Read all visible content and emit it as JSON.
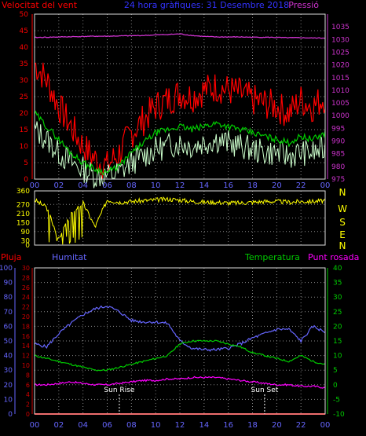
{
  "chart_data": [
    {
      "type": "line",
      "title": "24 hora gràfiques: 31 Desembre 2018",
      "left_label": "Velocitat del vent",
      "right_label": "Pressió",
      "x_tick_labels": [
        "00",
        "02",
        "04",
        "06",
        "08",
        "10",
        "12",
        "14",
        "16",
        "18",
        "20",
        "22",
        "00"
      ],
      "ylim_left": [
        0,
        50
      ],
      "yticks_left": [
        0,
        5,
        10,
        15,
        20,
        25,
        30,
        35,
        40,
        45,
        50
      ],
      "ylim_right": [
        975,
        1040
      ],
      "yticks_right": [
        975,
        980,
        985,
        990,
        995,
        1000,
        1005,
        1010,
        1015,
        1020,
        1025,
        1030,
        1035
      ],
      "grid": true,
      "colors": {
        "gust": "#ff0000",
        "average": "#00cc00",
        "speed": "#ccffcc",
        "pressure": "#cc33cc"
      },
      "series": [
        {
          "key": "gust",
          "values": [
            35,
            30,
            22,
            16,
            10,
            6,
            4,
            8,
            14,
            18,
            22,
            24,
            26,
            25,
            27,
            28,
            27,
            26,
            24,
            23,
            22,
            20,
            24,
            22,
            25
          ]
        },
        {
          "key": "average",
          "values": [
            20,
            16,
            12,
            8,
            5,
            3,
            2,
            4,
            8,
            11,
            14,
            15,
            16,
            15,
            16,
            17,
            16,
            15,
            14,
            13,
            12,
            11,
            13,
            12,
            14
          ]
        },
        {
          "key": "speed",
          "values": [
            15,
            12,
            8,
            5,
            3,
            1,
            1,
            2,
            5,
            7,
            9,
            10,
            11,
            10,
            11,
            12,
            11,
            10,
            9,
            8,
            8,
            7,
            8,
            8,
            9
          ]
        },
        {
          "key": "pressure",
          "values": [
            1030.8,
            1030.9,
            1031.0,
            1031.1,
            1031.2,
            1031.3,
            1031.3,
            1031.4,
            1031.5,
            1031.6,
            1031.8,
            1032.0,
            1032.2,
            1031.6,
            1031.2,
            1031.0,
            1031.0,
            1031.0,
            1030.9,
            1030.9,
            1030.8,
            1030.7,
            1030.7,
            1030.6,
            1030.6
          ]
        }
      ]
    },
    {
      "type": "line",
      "ylim": [
        0,
        360
      ],
      "yticks": [
        0,
        30,
        90,
        150,
        210,
        270,
        360
      ],
      "compass_labels": [
        "N",
        "W",
        "S",
        "E",
        "N"
      ],
      "grid": true,
      "colors": {
        "direction": "#ffff00"
      },
      "series": [
        {
          "key": "direction",
          "values": [
            300,
            250,
            40,
            200,
            280,
            120,
            300,
            285,
            290,
            295,
            300,
            305,
            300,
            290,
            285,
            285,
            280,
            280,
            285,
            290,
            290,
            285,
            290,
            290,
            295
          ]
        }
      ]
    },
    {
      "type": "line",
      "left_label": "Pluja",
      "left_label_2": "Humitat",
      "right_label": "Temperatura",
      "right_label_2": "Punt rosada",
      "annotations": [
        "Sun Rise",
        "Sun Set"
      ],
      "annotation_hours": [
        7,
        19
      ],
      "ylim_humidity": [
        0,
        100
      ],
      "yticks_humidity": [
        0,
        10,
        20,
        30,
        40,
        50,
        60,
        70,
        80,
        90,
        100
      ],
      "ylim_rain": [
        0,
        30
      ],
      "yticks_rain": [
        0,
        2,
        4,
        6,
        8,
        10,
        12,
        14,
        16,
        18,
        20,
        22,
        24,
        26,
        28,
        30
      ],
      "ylim_temp": [
        -10,
        40
      ],
      "yticks_temp": [
        -10,
        -5,
        0,
        5,
        10,
        15,
        20,
        25,
        30,
        35,
        40
      ],
      "grid": true,
      "colors": {
        "humidity": "#6666ff",
        "temperature": "#00cc00",
        "dewpoint": "#ff00ff",
        "rain": "#ff0000",
        "rain_axis": "#cc0000"
      },
      "series": [
        {
          "key": "humidity",
          "values": [
            48,
            46,
            55,
            62,
            68,
            72,
            74,
            70,
            64,
            63,
            63,
            62,
            50,
            45,
            44,
            44,
            45,
            48,
            52,
            55,
            58,
            58,
            50,
            60,
            56
          ]
        },
        {
          "key": "temperature",
          "values": [
            10,
            9,
            8,
            7,
            6,
            5,
            5,
            6,
            7,
            8,
            9,
            10,
            14,
            15,
            15,
            15,
            14,
            13,
            11,
            10,
            9,
            8,
            10,
            8,
            7
          ]
        },
        {
          "key": "dewpoint",
          "values": [
            0,
            0,
            0.5,
            1,
            0.5,
            0,
            0,
            0.5,
            1,
            1.5,
            1.5,
            2,
            2,
            2.5,
            2.5,
            2.5,
            2,
            1.5,
            1,
            0.5,
            0,
            0,
            -0.5,
            -0.5,
            -1
          ]
        },
        {
          "key": "rain",
          "values": [
            0,
            0,
            0,
            0,
            0,
            0,
            0,
            0,
            0,
            0,
            0,
            0,
            0,
            0,
            0,
            0,
            0,
            0,
            0,
            0,
            0,
            0,
            0,
            0,
            0
          ]
        }
      ]
    }
  ]
}
